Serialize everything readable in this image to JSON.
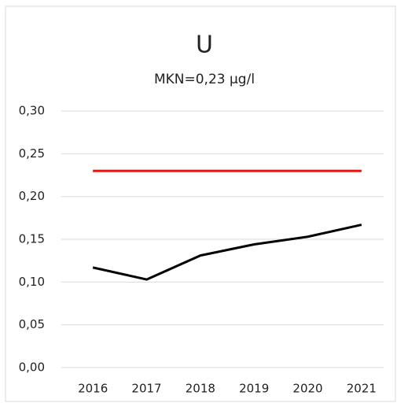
{
  "chart_data": {
    "type": "line",
    "title": "U",
    "subtitle": "MKN=0,23 µg/l",
    "categories": [
      "2016",
      "2017",
      "2018",
      "2019",
      "2020",
      "2021"
    ],
    "series": [
      {
        "color": "#000000",
        "values": [
          0.117,
          0.103,
          0.131,
          0.144,
          0.153,
          0.167
        ]
      },
      {
        "color": "#e3120b",
        "values": [
          0.23,
          0.23,
          0.23,
          0.23,
          0.23,
          0.23
        ]
      }
    ],
    "ylim": [
      0,
      0.3
    ],
    "yticks": [
      {
        "value": 0,
        "label": "0,00"
      },
      {
        "value": 0.05,
        "label": "0,05"
      },
      {
        "value": 0.1,
        "label": "0,10"
      },
      {
        "value": 0.15,
        "label": "0,15"
      },
      {
        "value": 0.2,
        "label": "0,20"
      },
      {
        "value": 0.25,
        "label": "0,25"
      },
      {
        "value": 0.3,
        "label": "0,30"
      }
    ],
    "grid": true
  }
}
